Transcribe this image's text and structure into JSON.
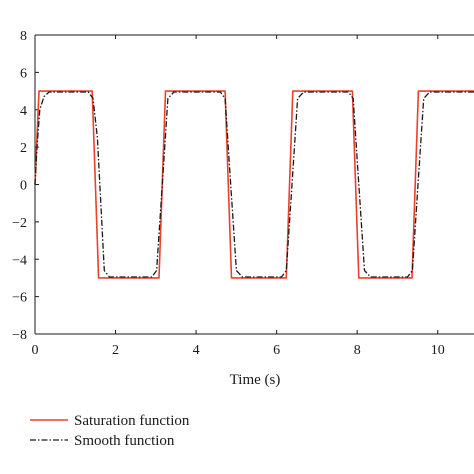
{
  "chart_data": {
    "type": "line",
    "xlabel": "Time (s)",
    "ylabel": "",
    "xlim": [
      0,
      10.9
    ],
    "ylim": [
      -8,
      8
    ],
    "xticks": [
      0,
      2,
      4,
      6,
      8,
      10
    ],
    "yticks": [
      -8,
      -6,
      -4,
      -2,
      0,
      2,
      4,
      6,
      8
    ],
    "grid": false,
    "legend_position": "bottom-left",
    "series": [
      {
        "name": "Saturation function",
        "color": "#e8412c",
        "style": "solid",
        "x": [
          0,
          0.1,
          1.42,
          1.58,
          3.08,
          3.24,
          4.72,
          4.88,
          6.24,
          6.4,
          7.88,
          8.04,
          9.36,
          9.52,
          10.9
        ],
        "y": [
          0,
          5,
          5,
          -5,
          -5,
          5,
          5,
          -5,
          -5,
          5,
          5,
          -5,
          -5,
          5,
          5
        ]
      },
      {
        "name": "Smooth function",
        "color": "#1a1a1a",
        "style": "dashdot",
        "x": [
          0,
          0.05,
          0.12,
          0.22,
          0.35,
          1.32,
          1.44,
          1.55,
          1.72,
          1.85,
          2.0,
          2.9,
          3.02,
          3.16,
          3.3,
          3.45,
          4.6,
          4.72,
          4.86,
          5.0,
          5.15,
          6.12,
          6.24,
          6.38,
          6.52,
          6.67,
          7.78,
          7.9,
          8.04,
          8.18,
          8.33,
          9.25,
          9.37,
          9.51,
          9.65,
          9.8,
          10.9
        ],
        "y": [
          0,
          2.0,
          4.0,
          4.7,
          4.95,
          4.95,
          4.6,
          2.5,
          -4.6,
          -4.95,
          -4.95,
          -4.95,
          -4.6,
          0,
          4.6,
          4.95,
          4.95,
          4.6,
          0,
          -4.6,
          -4.95,
          -4.95,
          -4.6,
          0,
          4.6,
          4.95,
          4.95,
          4.6,
          0,
          -4.6,
          -4.95,
          -4.95,
          -4.6,
          0,
          4.6,
          4.95,
          4.95
        ]
      }
    ]
  }
}
